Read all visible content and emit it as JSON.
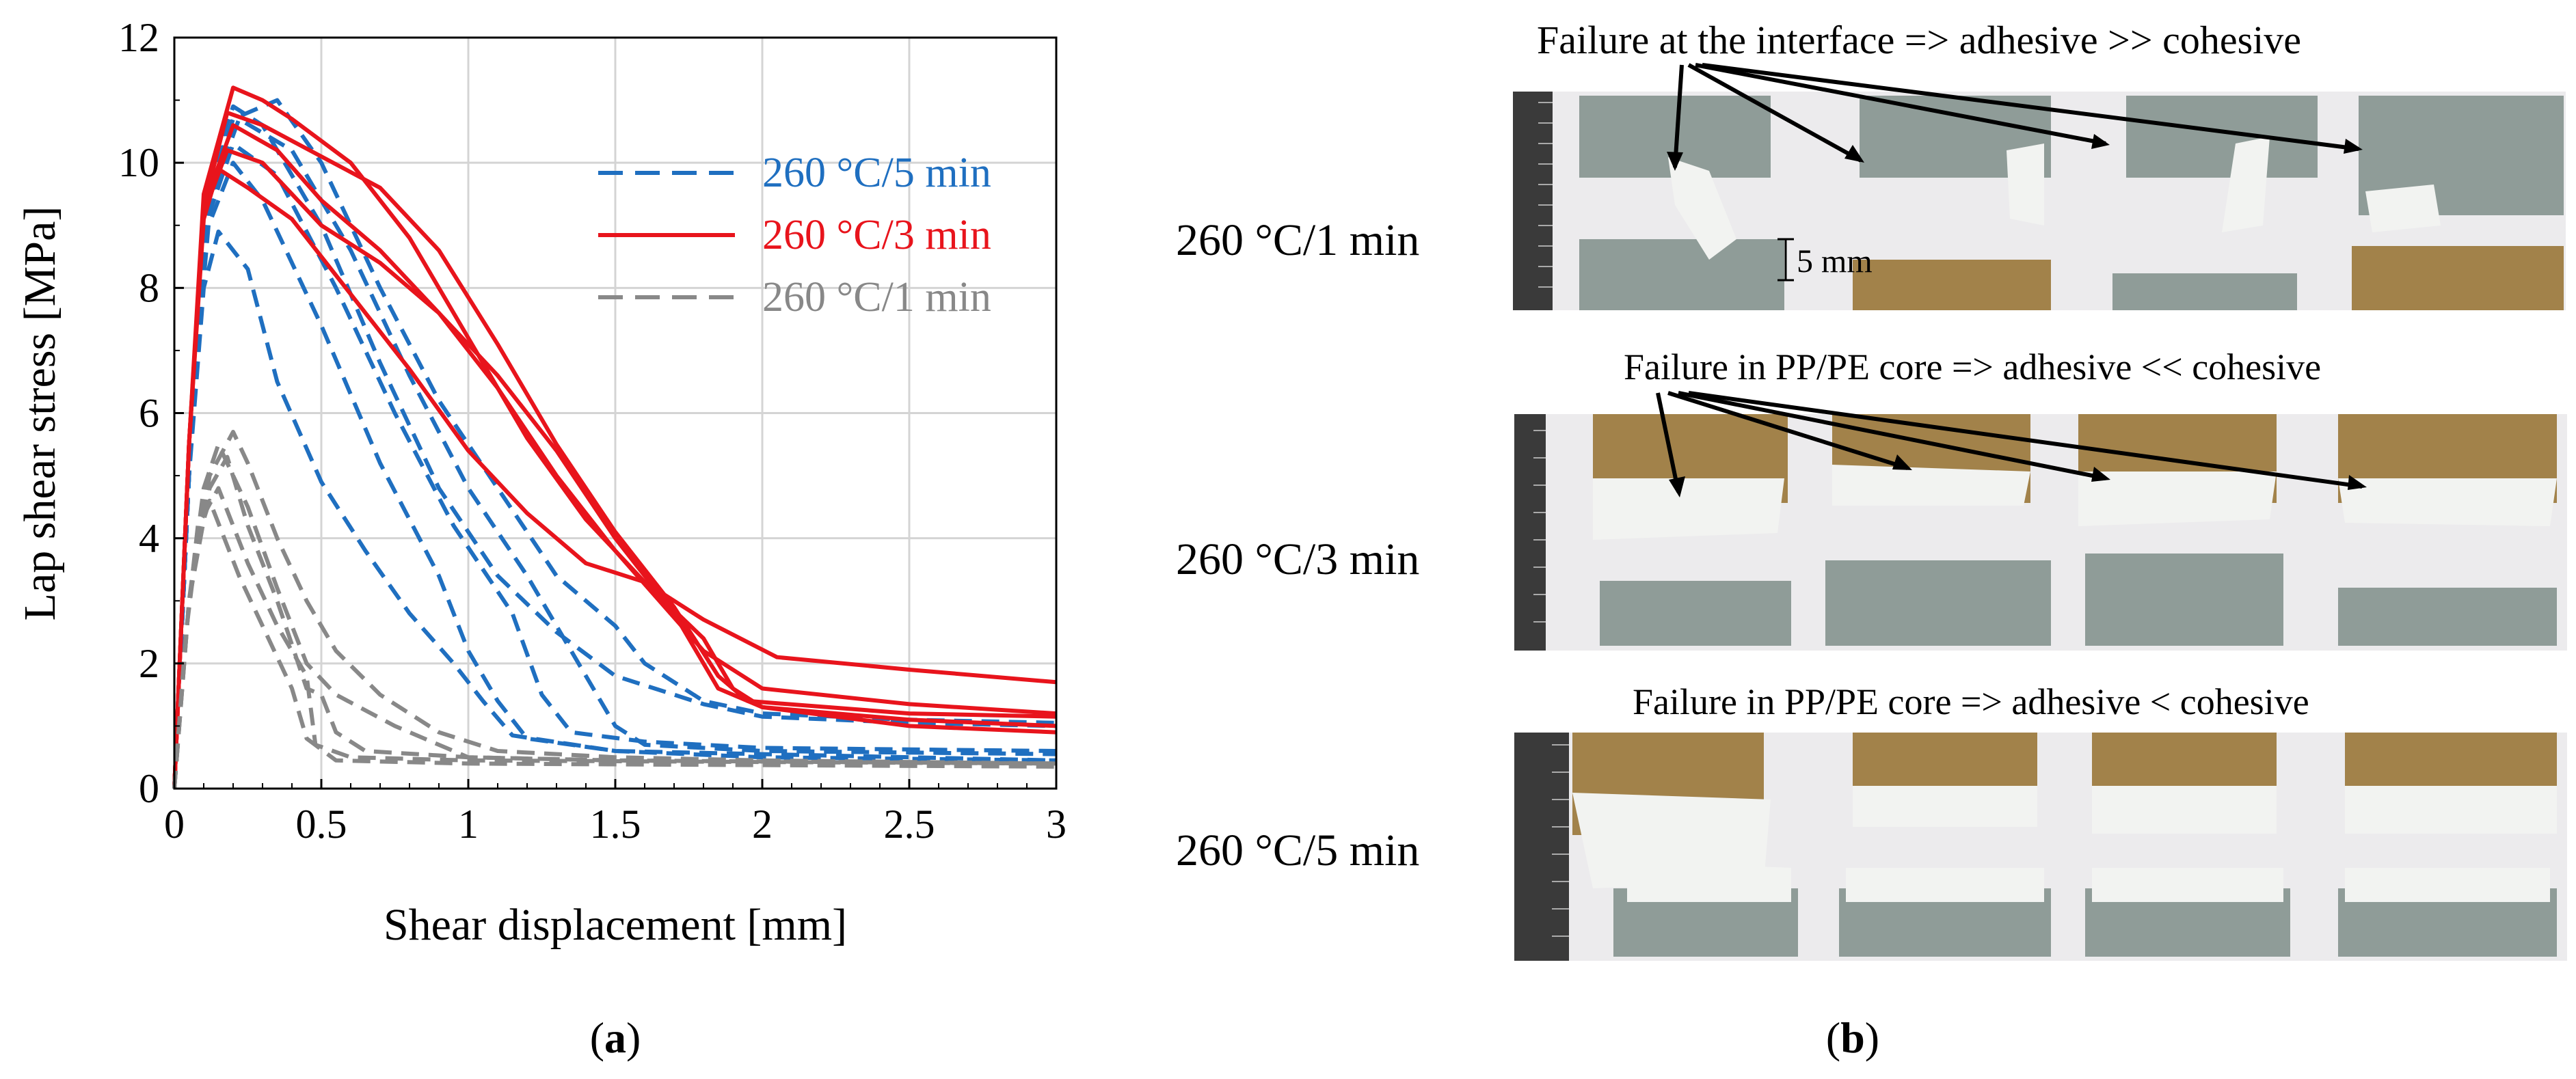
{
  "panels": {
    "a": {
      "label_open": "(",
      "label_letter": "a",
      "label_close": ")"
    },
    "b": {
      "label_open": "(",
      "label_letter": "b",
      "label_close": ")",
      "rows": [
        {
          "condition": "260 °C/1 min",
          "caption": "Failure at the interface => adhesive >> cohesive",
          "scale_note": "5 mm"
        },
        {
          "condition": "260 °C/3 min",
          "caption": "Failure in PP/PE core => adhesive << cohesive"
        },
        {
          "condition": "260 °C/5 min",
          "caption": "Failure in PP/PE core => adhesive < cohesive"
        }
      ],
      "photo_colors": {
        "background": "#ecebed",
        "grey_strip": "#8f9c98",
        "gold_strip": "#a2824a",
        "white_residue": "#f2f3f1",
        "ruler": "#3a3a3a"
      }
    }
  },
  "chart_data": {
    "type": "line",
    "xlabel": "Shear displacement [mm]",
    "ylabel": "Lap shear stress [MPa]",
    "xlim": [
      0,
      3
    ],
    "ylim": [
      0,
      12
    ],
    "xticks": [
      0,
      0.5,
      1,
      1.5,
      2,
      2.5,
      3
    ],
    "xtick_labels": [
      "0",
      "0.5",
      "1",
      "1.5",
      "2",
      "2.5",
      "3"
    ],
    "yticks": [
      0,
      2,
      4,
      6,
      8,
      10,
      12
    ],
    "ytick_labels": [
      "0",
      "2",
      "4",
      "6",
      "8",
      "10",
      "12"
    ],
    "grid": true,
    "legend_position": "top-right",
    "legend": [
      {
        "name": "260 °C/5 min",
        "color": "#1f6fc0",
        "style": "dashed"
      },
      {
        "name": "260 °C/3 min",
        "color": "#e8141c",
        "style": "solid"
      },
      {
        "name": "260 °C/1 min",
        "color": "#888888",
        "style": "dashed"
      }
    ],
    "series": [
      {
        "group": "260 °C/5 min",
        "color": "#1f6fc0",
        "dash": true,
        "points": [
          [
            0,
            0
          ],
          [
            0.06,
            6
          ],
          [
            0.12,
            9.8
          ],
          [
            0.2,
            10.9
          ],
          [
            0.3,
            10.6
          ],
          [
            0.5,
            9
          ],
          [
            0.7,
            6.8
          ],
          [
            0.9,
            4.8
          ],
          [
            1.1,
            3.4
          ],
          [
            1.3,
            2.5
          ],
          [
            1.5,
            1.8
          ],
          [
            1.7,
            1.5
          ],
          [
            1.8,
            1.35
          ],
          [
            2.0,
            1.15
          ],
          [
            2.5,
            1.05
          ],
          [
            3,
            1.0
          ]
        ]
      },
      {
        "group": "260 °C/5 min",
        "color": "#1f6fc0",
        "dash": true,
        "points": [
          [
            0,
            0
          ],
          [
            0.06,
            6
          ],
          [
            0.12,
            9.6
          ],
          [
            0.2,
            10.7
          ],
          [
            0.35,
            11.0
          ],
          [
            0.5,
            10
          ],
          [
            0.7,
            8
          ],
          [
            0.9,
            6.2
          ],
          [
            1.1,
            4.8
          ],
          [
            1.3,
            3.4
          ],
          [
            1.5,
            2.6
          ],
          [
            1.6,
            2.0
          ],
          [
            1.8,
            1.4
          ],
          [
            2.0,
            1.2
          ],
          [
            2.5,
            1.1
          ],
          [
            3,
            1.05
          ]
        ]
      },
      {
        "group": "260 °C/5 min",
        "color": "#1f6fc0",
        "dash": true,
        "points": [
          [
            0,
            0
          ],
          [
            0.06,
            6
          ],
          [
            0.12,
            9.4
          ],
          [
            0.22,
            10.7
          ],
          [
            0.4,
            10.2
          ],
          [
            0.6,
            8.6
          ],
          [
            0.8,
            6.6
          ],
          [
            1.0,
            4.8
          ],
          [
            1.2,
            3.4
          ],
          [
            1.35,
            2.2
          ],
          [
            1.5,
            1.0
          ],
          [
            1.6,
            0.7
          ],
          [
            2.0,
            0.6
          ],
          [
            3,
            0.55
          ]
        ]
      },
      {
        "group": "260 °C/5 min",
        "color": "#1f6fc0",
        "dash": true,
        "points": [
          [
            0,
            0
          ],
          [
            0.06,
            6
          ],
          [
            0.12,
            9.2
          ],
          [
            0.2,
            10.3
          ],
          [
            0.35,
            9.8
          ],
          [
            0.55,
            8.0
          ],
          [
            0.75,
            6.0
          ],
          [
            0.95,
            4.2
          ],
          [
            1.15,
            2.8
          ],
          [
            1.25,
            1.5
          ],
          [
            1.35,
            0.9
          ],
          [
            1.6,
            0.75
          ],
          [
            2.0,
            0.65
          ],
          [
            3,
            0.6
          ]
        ]
      },
      {
        "group": "260 °C/5 min",
        "color": "#1f6fc0",
        "dash": true,
        "points": [
          [
            0,
            0
          ],
          [
            0.05,
            5
          ],
          [
            0.1,
            8.8
          ],
          [
            0.2,
            10.0
          ],
          [
            0.3,
            9.4
          ],
          [
            0.5,
            7.4
          ],
          [
            0.7,
            5.2
          ],
          [
            0.9,
            3.4
          ],
          [
            1.0,
            2.2
          ],
          [
            1.1,
            1.4
          ],
          [
            1.2,
            0.8
          ],
          [
            1.5,
            0.6
          ],
          [
            2.0,
            0.5
          ],
          [
            3,
            0.45
          ]
        ]
      },
      {
        "group": "260 °C/5 min",
        "color": "#1f6fc0",
        "dash": true,
        "points": [
          [
            0,
            0
          ],
          [
            0.05,
            5
          ],
          [
            0.1,
            8
          ],
          [
            0.15,
            8.9
          ],
          [
            0.25,
            8.3
          ],
          [
            0.35,
            6.5
          ],
          [
            0.5,
            4.9
          ],
          [
            0.65,
            3.8
          ],
          [
            0.8,
            2.8
          ],
          [
            0.95,
            2.0
          ],
          [
            1.05,
            1.4
          ],
          [
            1.15,
            0.85
          ],
          [
            1.5,
            0.6
          ],
          [
            3,
            0.45
          ]
        ]
      },
      {
        "group": "260 °C/3 min",
        "color": "#e8141c",
        "dash": false,
        "points": [
          [
            0,
            0
          ],
          [
            0.05,
            5.5
          ],
          [
            0.1,
            9.5
          ],
          [
            0.2,
            11.2
          ],
          [
            0.3,
            11
          ],
          [
            0.4,
            10.7
          ],
          [
            0.6,
            10
          ],
          [
            0.8,
            8.8
          ],
          [
            1.0,
            7.2
          ],
          [
            1.2,
            5.6
          ],
          [
            1.4,
            4.3
          ],
          [
            1.6,
            3.3
          ],
          [
            1.8,
            2.7
          ],
          [
            2.05,
            2.1
          ],
          [
            2.5,
            1.9
          ],
          [
            3,
            1.7
          ]
        ]
      },
      {
        "group": "260 °C/3 min",
        "color": "#e8141c",
        "dash": false,
        "points": [
          [
            0,
            0
          ],
          [
            0.05,
            5.5
          ],
          [
            0.1,
            9.3
          ],
          [
            0.18,
            10.8
          ],
          [
            0.3,
            10.6
          ],
          [
            0.5,
            10.1
          ],
          [
            0.7,
            9.6
          ],
          [
            0.9,
            8.6
          ],
          [
            1.1,
            7.1
          ],
          [
            1.3,
            5.5
          ],
          [
            1.5,
            4.1
          ],
          [
            1.7,
            2.9
          ],
          [
            1.85,
            1.8
          ],
          [
            1.95,
            1.4
          ],
          [
            2.5,
            1.2
          ],
          [
            3,
            1.15
          ]
        ]
      },
      {
        "group": "260 °C/3 min",
        "color": "#e8141c",
        "dash": false,
        "points": [
          [
            0,
            0
          ],
          [
            0.05,
            5.5
          ],
          [
            0.1,
            9.3
          ],
          [
            0.2,
            10.6
          ],
          [
            0.35,
            10.2
          ],
          [
            0.5,
            9.4
          ],
          [
            0.7,
            8.6
          ],
          [
            0.9,
            7.6
          ],
          [
            1.1,
            6.4
          ],
          [
            1.3,
            5.0
          ],
          [
            1.5,
            3.8
          ],
          [
            1.65,
            3.0
          ],
          [
            1.8,
            2.2
          ],
          [
            2.0,
            1.6
          ],
          [
            2.5,
            1.35
          ],
          [
            3,
            1.2
          ]
        ]
      },
      {
        "group": "260 °C/3 min",
        "color": "#e8141c",
        "dash": false,
        "points": [
          [
            0,
            0
          ],
          [
            0.05,
            5.5
          ],
          [
            0.1,
            9.2
          ],
          [
            0.18,
            10.2
          ],
          [
            0.3,
            10
          ],
          [
            0.5,
            9.0
          ],
          [
            0.7,
            8.4
          ],
          [
            0.9,
            7.6
          ],
          [
            1.1,
            6.6
          ],
          [
            1.3,
            5.4
          ],
          [
            1.5,
            4.0
          ],
          [
            1.7,
            2.8
          ],
          [
            1.85,
            1.6
          ],
          [
            2.0,
            1.3
          ],
          [
            2.5,
            1.1
          ],
          [
            3,
            1.0
          ]
        ]
      },
      {
        "group": "260 °C/3 min",
        "color": "#e8141c",
        "dash": false,
        "points": [
          [
            0,
            0
          ],
          [
            0.05,
            5.5
          ],
          [
            0.1,
            9.1
          ],
          [
            0.15,
            9.9
          ],
          [
            0.25,
            9.6
          ],
          [
            0.4,
            9.1
          ],
          [
            0.6,
            7.9
          ],
          [
            0.8,
            6.7
          ],
          [
            1.0,
            5.4
          ],
          [
            1.2,
            4.4
          ],
          [
            1.4,
            3.6
          ],
          [
            1.6,
            3.3
          ],
          [
            1.8,
            2.4
          ],
          [
            1.9,
            1.6
          ],
          [
            2.0,
            1.3
          ],
          [
            2.5,
            1.0
          ],
          [
            3,
            0.9
          ]
        ]
      },
      {
        "group": "260 °C/1 min",
        "color": "#888888",
        "dash": true,
        "points": [
          [
            0,
            0
          ],
          [
            0.05,
            3
          ],
          [
            0.12,
            5.0
          ],
          [
            0.2,
            5.7
          ],
          [
            0.25,
            5.2
          ],
          [
            0.35,
            4.0
          ],
          [
            0.45,
            3.0
          ],
          [
            0.55,
            2.2
          ],
          [
            0.7,
            1.5
          ],
          [
            0.9,
            0.9
          ],
          [
            1.1,
            0.6
          ],
          [
            1.5,
            0.5
          ],
          [
            2,
            0.45
          ],
          [
            3,
            0.4
          ]
        ]
      },
      {
        "group": "260 °C/1 min",
        "color": "#888888",
        "dash": true,
        "points": [
          [
            0,
            0
          ],
          [
            0.05,
            3
          ],
          [
            0.1,
            4.8
          ],
          [
            0.15,
            5.5
          ],
          [
            0.25,
            4.5
          ],
          [
            0.35,
            3.2
          ],
          [
            0.45,
            2.0
          ],
          [
            0.55,
            1.5
          ],
          [
            0.75,
            1.0
          ],
          [
            1.0,
            0.5
          ],
          [
            1.5,
            0.45
          ],
          [
            3,
            0.4
          ]
        ]
      },
      {
        "group": "260 °C/1 min",
        "color": "#888888",
        "dash": true,
        "points": [
          [
            0,
            0
          ],
          [
            0.05,
            3
          ],
          [
            0.12,
            4.8
          ],
          [
            0.18,
            5.3
          ],
          [
            0.25,
            4.2
          ],
          [
            0.35,
            3.0
          ],
          [
            0.45,
            1.6
          ],
          [
            0.5,
            1.5
          ],
          [
            0.55,
            0.9
          ],
          [
            0.65,
            0.6
          ],
          [
            1.0,
            0.5
          ],
          [
            1.5,
            0.45
          ],
          [
            3,
            0.4
          ]
        ]
      },
      {
        "group": "260 °C/1 min",
        "color": "#888888",
        "dash": true,
        "points": [
          [
            0,
            0
          ],
          [
            0.04,
            2.5
          ],
          [
            0.08,
            4.2
          ],
          [
            0.15,
            4.8
          ],
          [
            0.25,
            3.6
          ],
          [
            0.35,
            2.6
          ],
          [
            0.45,
            1.8
          ],
          [
            0.48,
            0.7
          ],
          [
            0.6,
            0.5
          ],
          [
            1.0,
            0.45
          ],
          [
            3,
            0.4
          ]
        ]
      },
      {
        "group": "260 °C/1 min",
        "color": "#888888",
        "dash": true,
        "points": [
          [
            0,
            0
          ],
          [
            0.04,
            2.5
          ],
          [
            0.08,
            4.0
          ],
          [
            0.12,
            4.6
          ],
          [
            0.22,
            3.4
          ],
          [
            0.32,
            2.4
          ],
          [
            0.4,
            1.6
          ],
          [
            0.45,
            0.8
          ],
          [
            0.55,
            0.45
          ],
          [
            1.0,
            0.4
          ],
          [
            3,
            0.35
          ]
        ]
      }
    ]
  }
}
